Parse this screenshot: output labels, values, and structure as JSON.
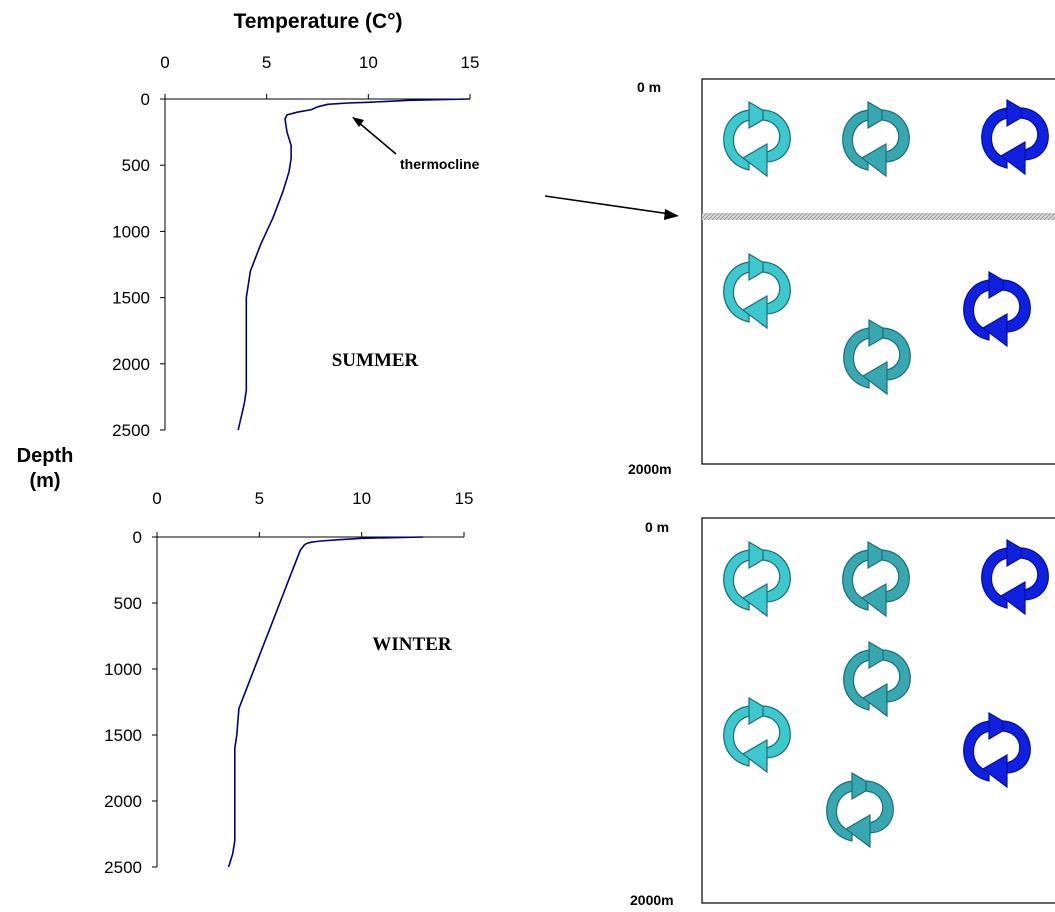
{
  "shared_labels": {
    "temperature_title": "Temperature (C°)",
    "depth_label_line1": "Depth",
    "depth_label_line2": "(m)",
    "thermocline_label": "thermocline"
  },
  "chart_data": [
    {
      "type": "line",
      "panel": "summer",
      "annotation": "SUMMER",
      "xlim": [
        0,
        15
      ],
      "ylim": [
        0,
        2500
      ],
      "y_inverted": true,
      "x_ticks": [
        0,
        5,
        10,
        15
      ],
      "y_ticks": [
        0,
        500,
        1000,
        1500,
        2000,
        2500
      ],
      "series": [
        {
          "color": "#000080",
          "x": [
            15.0,
            12.0,
            10.0,
            9.0,
            8.0,
            7.5,
            7.2,
            6.5,
            6.0,
            5.9,
            6.0,
            6.2,
            6.2,
            6.1,
            5.8,
            5.3,
            4.7,
            4.2,
            4.0,
            4.0,
            4.0,
            4.0,
            4.0,
            3.9,
            3.6
          ],
          "y": [
            0,
            10,
            25,
            30,
            40,
            60,
            80,
            100,
            120,
            150,
            250,
            350,
            450,
            550,
            700,
            900,
            1100,
            1300,
            1500,
            1600,
            1800,
            2000,
            2200,
            2300,
            2500
          ]
        }
      ]
    },
    {
      "type": "line",
      "panel": "winter",
      "annotation": "WINTER",
      "xlim": [
        0,
        15
      ],
      "ylim": [
        0,
        2500
      ],
      "y_inverted": true,
      "x_ticks": [
        0,
        5,
        10,
        15
      ],
      "y_ticks": [
        0,
        500,
        1000,
        1500,
        2000,
        2500
      ],
      "series": [
        {
          "color": "#000080",
          "x": [
            13.0,
            10.0,
            9.0,
            8.0,
            7.5,
            7.3,
            7.2,
            7.0,
            6.5,
            6.0,
            5.5,
            5.0,
            4.5,
            4.0,
            3.9,
            3.8,
            3.8,
            3.8,
            3.8,
            3.8,
            3.7,
            3.5
          ],
          "y": [
            0,
            10,
            20,
            30,
            40,
            50,
            60,
            100,
            300,
            500,
            700,
            900,
            1100,
            1300,
            1500,
            1600,
            1800,
            2000,
            2200,
            2300,
            2400,
            2500
          ]
        }
      ]
    }
  ],
  "diagram": {
    "summer_box": {
      "top_label": "0 m",
      "bottom_label": "2000m",
      "has_thermocline": true
    },
    "winter_box": {
      "top_label": "0 m",
      "bottom_label": "2000m",
      "has_thermocline": false
    },
    "colors": {
      "eddy_light": "#3cc8cc",
      "eddy_teal": "#38a8b0",
      "eddy_blue": "#1020e0",
      "thermocline_band": "#c8c8c8",
      "outline": "#000000"
    }
  }
}
